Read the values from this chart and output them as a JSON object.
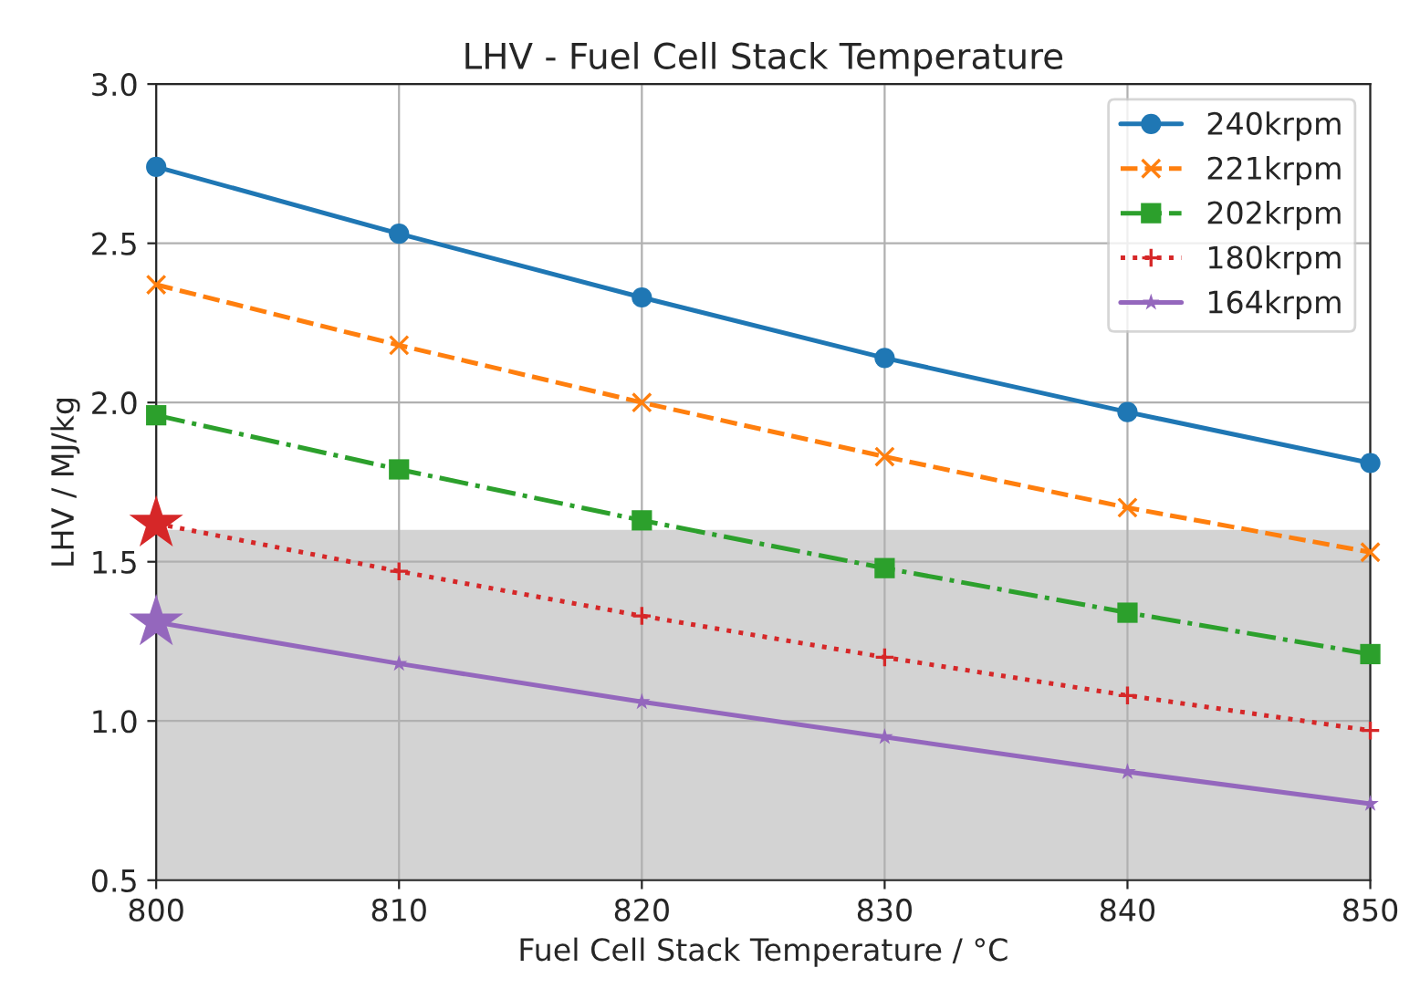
{
  "chart_data": {
    "type": "line",
    "title": "LHV - Fuel Cell Stack Temperature",
    "xlabel": "Fuel Cell Stack Temperature / °C",
    "ylabel": "LHV / MJ/kg",
    "x": [
      800,
      810,
      820,
      830,
      840,
      850
    ],
    "series": [
      {
        "name": "240krpm",
        "color": "#1f77b4",
        "marker": "circle",
        "line_style": "solid",
        "values": [
          2.74,
          2.53,
          2.33,
          2.14,
          1.97,
          1.81
        ]
      },
      {
        "name": "221krpm",
        "color": "#ff7f0e",
        "marker": "cross",
        "line_style": "dashed",
        "values": [
          2.37,
          2.18,
          2.0,
          1.83,
          1.67,
          1.53
        ]
      },
      {
        "name": "202krpm",
        "color": "#2ca02c",
        "marker": "square",
        "line_style": "dashdot",
        "values": [
          1.96,
          1.79,
          1.63,
          1.48,
          1.34,
          1.21
        ]
      },
      {
        "name": "180krpm",
        "color": "#d62728",
        "marker": "plus",
        "line_style": "dotted",
        "values": [
          1.62,
          1.47,
          1.33,
          1.2,
          1.08,
          0.97
        ]
      },
      {
        "name": "164krpm",
        "color": "#9467bd",
        "marker": "star",
        "line_style": "solid",
        "values": [
          1.31,
          1.18,
          1.06,
          0.95,
          0.84,
          0.74
        ]
      },
      {
        "type": "scatter",
        "marker": "star",
        "x": [
          800
        ],
        "color": "#d62728",
        "values": [
          1.62
        ]
      },
      {
        "type": "scatter",
        "marker": "star",
        "x": [
          800
        ],
        "color": "#9467bd",
        "values": [
          1.31
        ]
      }
    ],
    "bands": [
      {
        "axis": "y",
        "from": 0.5,
        "to": 1.6,
        "color": "#d3d3d3"
      }
    ],
    "xlim": [
      800,
      850
    ],
    "xticks": [
      800,
      810,
      820,
      830,
      840,
      850
    ],
    "ylim": [
      0.5,
      3.0
    ],
    "yticks": [
      {
        "value": 0.5,
        "label": "0.5"
      },
      {
        "value": 1.0,
        "label": "1.0"
      },
      {
        "value": 1.5,
        "label": "1.5"
      },
      {
        "value": 2.0,
        "label": "2.0"
      },
      {
        "value": 2.5,
        "label": "2.5"
      },
      {
        "value": 3.0,
        "label": "3.0"
      }
    ],
    "grid": true,
    "legend": "top right"
  }
}
